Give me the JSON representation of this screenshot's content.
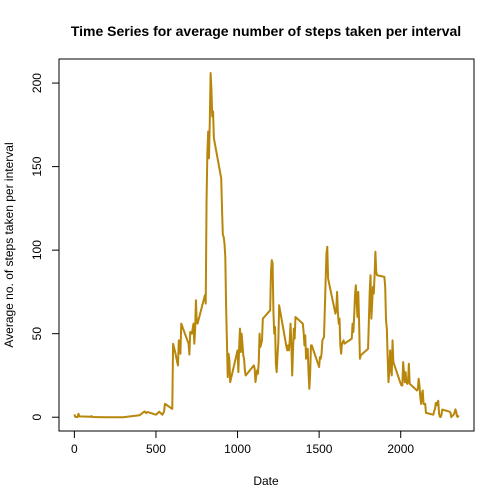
{
  "chart_data": {
    "type": "line",
    "title": "Time Series for average number of steps taken per interval",
    "x_label": "Date",
    "y_label": "Average no. of steps taken per interval",
    "x": [
      0,
      5,
      10,
      15,
      20,
      25,
      30,
      100,
      105,
      110,
      200,
      300,
      400,
      430,
      440,
      450,
      500,
      520,
      540,
      550,
      555,
      600,
      605,
      610,
      620,
      630,
      635,
      640,
      645,
      650,
      655,
      700,
      705,
      710,
      720,
      730,
      735,
      740,
      745,
      750,
      755,
      800,
      805,
      810,
      815,
      820,
      825,
      830,
      835,
      840,
      845,
      850,
      855,
      900,
      905,
      910,
      915,
      920,
      925,
      930,
      935,
      940,
      945,
      950,
      955,
      1000,
      1005,
      1010,
      1015,
      1020,
      1025,
      1030,
      1035,
      1040,
      1045,
      1050,
      1100,
      1105,
      1110,
      1115,
      1120,
      1125,
      1130,
      1135,
      1140,
      1145,
      1150,
      1155,
      1200,
      1205,
      1210,
      1215,
      1220,
      1225,
      1230,
      1235,
      1240,
      1245,
      1250,
      1255,
      1300,
      1305,
      1310,
      1315,
      1320,
      1325,
      1330,
      1335,
      1340,
      1345,
      1350,
      1355,
      1400,
      1405,
      1410,
      1415,
      1420,
      1425,
      1430,
      1435,
      1440,
      1445,
      1450,
      1455,
      1500,
      1505,
      1510,
      1515,
      1520,
      1525,
      1530,
      1535,
      1540,
      1545,
      1550,
      1555,
      1600,
      1605,
      1610,
      1615,
      1620,
      1625,
      1630,
      1635,
      1640,
      1645,
      1650,
      1655,
      1700,
      1705,
      1710,
      1715,
      1720,
      1725,
      1730,
      1735,
      1740,
      1745,
      1750,
      1755,
      1800,
      1805,
      1810,
      1815,
      1820,
      1825,
      1830,
      1835,
      1840,
      1845,
      1850,
      1855,
      1900,
      1905,
      1910,
      1915,
      1920,
      1925,
      1930,
      1935,
      1940,
      1945,
      1950,
      1955,
      2000,
      2005,
      2010,
      2015,
      2020,
      2025,
      2030,
      2035,
      2040,
      2045,
      2050,
      2055,
      2100,
      2105,
      2110,
      2115,
      2120,
      2125,
      2130,
      2135,
      2140,
      2145,
      2150,
      2155,
      2200,
      2205,
      2210,
      2215,
      2220,
      2225,
      2230,
      2235,
      2240,
      2245,
      2250,
      2255,
      2300,
      2305,
      2310,
      2315,
      2320,
      2325,
      2330,
      2335,
      2340,
      2345,
      2350,
      2355
    ],
    "series": [
      {
        "name": "steps",
        "color": "#b8860b",
        "values": [
          1.7,
          0.3,
          0.1,
          0.2,
          0.1,
          2.1,
          0.5,
          0.3,
          0.7,
          0.1,
          0,
          0,
          1.2,
          3.5,
          2.5,
          3.1,
          1.5,
          3.3,
          1.5,
          3.5,
          8,
          5,
          44,
          42,
          38,
          33,
          31,
          46,
          45,
          38,
          56,
          44,
          37.5,
          51,
          50,
          56,
          44,
          52,
          70,
          57,
          56,
          73,
          68,
          129,
          158,
          171,
          155,
          177,
          206,
          196,
          180,
          183,
          167,
          143,
          124,
          109,
          108,
          104,
          96,
          66,
          45,
          24,
          38,
          34,
          21,
          40,
          27,
          42,
          53,
          39,
          50,
          44,
          37,
          35,
          28,
          25,
          31,
          29,
          21,
          25,
          28,
          26,
          33,
          50,
          42,
          44,
          46,
          59,
          64,
          87,
          94,
          92,
          63,
          50,
          54,
          32,
          27,
          37,
          45,
          67,
          42,
          40,
          43,
          40,
          46,
          56,
          43,
          25,
          40,
          53,
          47,
          60,
          56,
          51,
          43,
          49,
          35,
          37,
          41,
          27,
          17,
          26,
          43,
          43,
          30,
          36,
          35,
          38,
          46,
          47,
          48,
          65,
          82,
          98,
          102,
          83,
          62,
          64,
          75,
          63,
          56,
          59,
          43,
          38,
          44,
          45,
          46,
          44,
          47,
          56,
          51,
          61,
          73,
          79,
          69,
          60,
          75,
          57,
          35,
          37,
          41,
          58,
          75,
          85,
          59,
          68,
          78,
          74,
          85,
          99,
          87,
          85,
          84,
          78,
          58,
          53,
          36,
          21,
          27,
          40,
          30,
          25,
          46,
          33,
          20,
          19,
          19,
          33,
          27,
          21,
          27,
          21,
          20,
          21,
          32,
          20,
          16,
          17,
          23,
          19,
          12,
          8,
          14,
          16,
          8,
          7.8,
          8,
          2.6,
          1.5,
          3.7,
          4.8,
          8.5,
          7.1,
          8.7,
          9.8,
          2.2,
          0.3,
          0.1,
          1.6,
          4.6,
          3.3,
          2.8,
          0,
          0.8,
          1,
          1.6,
          2.6,
          4.7,
          3.3,
          0.6,
          0.2,
          1.1
        ]
      }
    ],
    "xlim": [
      -94.2,
      2449.2
    ],
    "xticks": [
      0,
      500,
      1000,
      1500,
      2000
    ],
    "ylim": [
      -8.25,
      214.4
    ],
    "yticks": [
      0,
      50,
      100,
      150,
      200
    ]
  }
}
